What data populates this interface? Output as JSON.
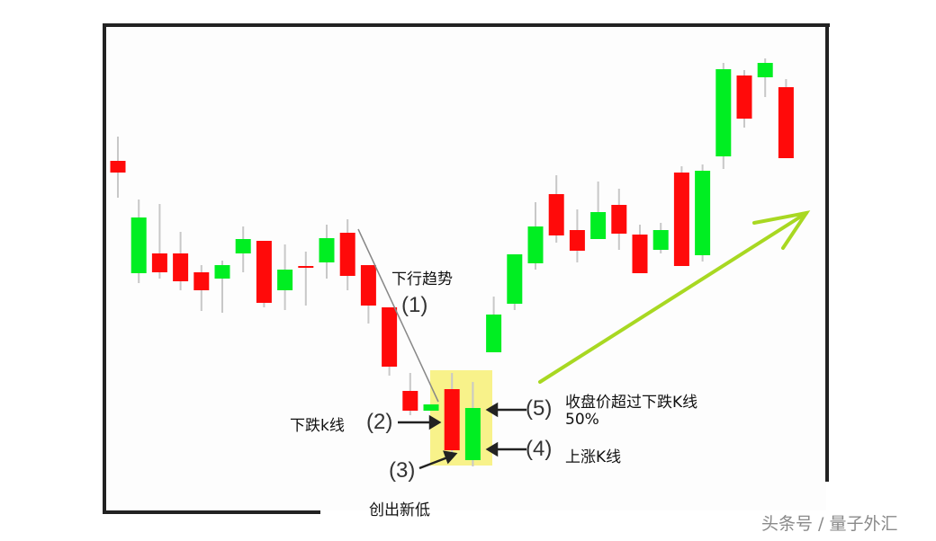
{
  "chart_data": {
    "type": "candlestick",
    "title": "",
    "xlabel": "",
    "ylabel": "",
    "grid": false,
    "colors": {
      "up": "#00ee22",
      "down": "#ff0a0a",
      "wick": "#c8c8c8",
      "highlight": "#f8f28a",
      "trend_arrow": "#a8d822",
      "downtrend_line": "#888888"
    },
    "candles": [
      {
        "o": 42.1,
        "h": 44.8,
        "l": 38.0,
        "c": 40.8
      },
      {
        "o": 29.6,
        "h": 37.8,
        "l": 28.5,
        "c": 35.8
      },
      {
        "o": 31.8,
        "h": 37.3,
        "l": 29.0,
        "c": 29.7
      },
      {
        "o": 31.8,
        "h": 34.2,
        "l": 27.7,
        "c": 28.7
      },
      {
        "o": 29.7,
        "h": 30.5,
        "l": 25.4,
        "c": 27.7
      },
      {
        "o": 29.0,
        "h": 31.0,
        "l": 25.2,
        "c": 30.5
      },
      {
        "o": 31.8,
        "h": 34.8,
        "l": 29.7,
        "c": 33.4
      },
      {
        "o": 33.2,
        "h": 33.2,
        "l": 25.8,
        "c": 26.3
      },
      {
        "o": 27.7,
        "h": 32.8,
        "l": 25.5,
        "c": 30.0
      },
      {
        "o": 30.4,
        "h": 32.0,
        "l": 26.0,
        "c": 30.2
      },
      {
        "o": 30.8,
        "h": 35.0,
        "l": 29.0,
        "c": 33.5
      },
      {
        "o": 34.1,
        "h": 35.6,
        "l": 27.7,
        "c": 29.3
      },
      {
        "o": 30.5,
        "h": 30.5,
        "l": 24.0,
        "c": 26.0
      },
      {
        "o": 25.8,
        "h": 25.8,
        "l": 18.2,
        "c": 19.2
      },
      {
        "o": 16.5,
        "h": 18.5,
        "l": 13.8,
        "c": 14.3
      },
      {
        "o": 14.3,
        "h": 15.0,
        "l": 14.3,
        "c": 15.0
      },
      {
        "o": 16.7,
        "h": 18.5,
        "l": 9.0,
        "c": 9.9
      },
      {
        "o": 8.8,
        "h": 17.5,
        "l": 8.1,
        "c": 14.6
      },
      {
        "o": 20.8,
        "h": 27.0,
        "l": 20.8,
        "c": 25.0
      },
      {
        "o": 26.2,
        "h": 31.7,
        "l": 25.5,
        "c": 31.7
      },
      {
        "o": 30.7,
        "h": 37.5,
        "l": 30.0,
        "c": 34.8
      },
      {
        "o": 38.4,
        "h": 40.5,
        "l": 33.0,
        "c": 33.8
      },
      {
        "o": 34.4,
        "h": 36.7,
        "l": 30.8,
        "c": 32.1
      },
      {
        "o": 33.4,
        "h": 39.8,
        "l": 33.4,
        "c": 36.4
      },
      {
        "o": 37.2,
        "h": 39.0,
        "l": 32.2,
        "c": 34.0
      },
      {
        "o": 33.9,
        "h": 35.0,
        "l": 29.6,
        "c": 29.6
      },
      {
        "o": 32.2,
        "h": 35.2,
        "l": 31.8,
        "c": 34.4
      },
      {
        "o": 40.8,
        "h": 41.5,
        "l": 30.4,
        "c": 30.4
      },
      {
        "o": 31.6,
        "h": 41.7,
        "l": 30.9,
        "c": 41.0
      },
      {
        "o": 42.6,
        "h": 53.0,
        "l": 41.2,
        "c": 52.3
      },
      {
        "o": 51.6,
        "h": 52.2,
        "l": 45.8,
        "c": 46.8
      },
      {
        "o": 51.4,
        "h": 53.5,
        "l": 49.2,
        "c": 53.0
      },
      {
        "o": 50.3,
        "h": 51.2,
        "l": 42.4,
        "c": 42.4
      }
    ],
    "annotations": {
      "downtrend": {
        "text": "下行趋势",
        "num": "(1)"
      },
      "bear_candle": {
        "text": "下跌k线",
        "num": "(2)"
      },
      "new_low": {
        "text": "创出新低",
        "num": "(3)"
      },
      "bull_candle": {
        "text": "上涨K线",
        "num": "(4)"
      },
      "close_above": {
        "text": "收盘价超过下跌K线",
        "text2": "50%",
        "num": "(5)"
      }
    }
  },
  "watermark": "头条号 / 量子外汇"
}
